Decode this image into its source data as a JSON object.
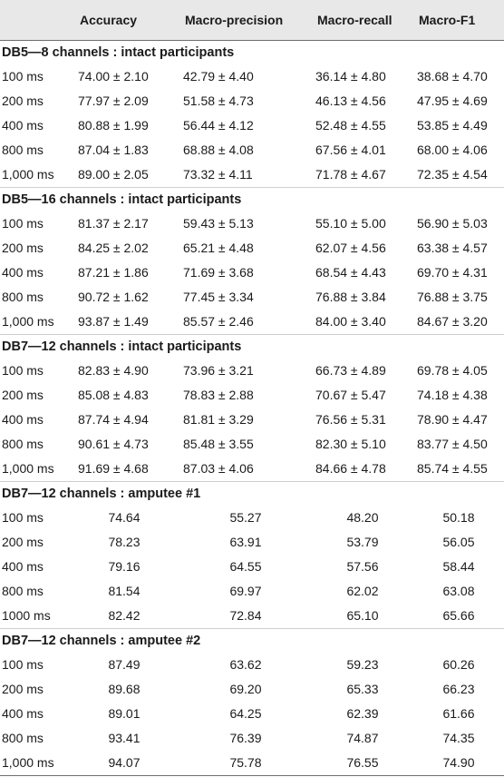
{
  "header": {
    "col0": "",
    "accuracy": "Accuracy",
    "macro_precision": "Macro-precision",
    "macro_recall": "Macro-recall",
    "macro_f1": "Macro-F1"
  },
  "sections": [
    {
      "title": "DB5—8 channels : intact participants",
      "rows": [
        {
          "label": "100 ms",
          "acc": "74.00 ± 2.10",
          "prec": "42.79 ± 4.40",
          "rec": "36.14 ± 4.80",
          "f1": "38.68 ± 4.70"
        },
        {
          "label": "200 ms",
          "acc": "77.97 ± 2.09",
          "prec": "51.58 ± 4.73",
          "rec": "46.13 ± 4.56",
          "f1": "47.95 ± 4.69"
        },
        {
          "label": "400 ms",
          "acc": "80.88 ± 1.99",
          "prec": "56.44 ± 4.12",
          "rec": "52.48 ± 4.55",
          "f1": "53.85 ± 4.49"
        },
        {
          "label": "800 ms",
          "acc": "87.04 ± 1.83",
          "prec": "68.88 ± 4.08",
          "rec": "67.56 ± 4.01",
          "f1": "68.00 ± 4.06"
        },
        {
          "label": "1,000 ms",
          "acc": "89.00 ± 2.05",
          "prec": "73.32 ± 4.11",
          "rec": "71.78 ± 4.67",
          "f1": "72.35 ± 4.54"
        }
      ]
    },
    {
      "title": "DB5—16 channels : intact participants",
      "rows": [
        {
          "label": "100 ms",
          "acc": "81.37 ± 2.17",
          "prec": "59.43 ± 5.13",
          "rec": "55.10 ± 5.00",
          "f1": "56.90 ± 5.03"
        },
        {
          "label": "200 ms",
          "acc": "84.25 ± 2.02",
          "prec": "65.21 ± 4.48",
          "rec": "62.07 ± 4.56",
          "f1": "63.38 ± 4.57"
        },
        {
          "label": "400 ms",
          "acc": "87.21 ± 1.86",
          "prec": "71.69 ± 3.68",
          "rec": "68.54 ± 4.43",
          "f1": "69.70 ± 4.31"
        },
        {
          "label": "800 ms",
          "acc": "90.72 ± 1.62",
          "prec": "77.45 ± 3.34",
          "rec": "76.88 ± 3.84",
          "f1": "76.88 ± 3.75"
        },
        {
          "label": "1,000 ms",
          "acc": "93.87 ± 1.49",
          "prec": "85.57 ± 2.46",
          "rec": "84.00 ± 3.40",
          "f1": "84.67 ± 3.20"
        }
      ]
    },
    {
      "title": "DB7—12 channels : intact participants",
      "rows": [
        {
          "label": "100 ms",
          "acc": "82.83 ± 4.90",
          "prec": "73.96 ± 3.21",
          "rec": "66.73 ± 4.89",
          "f1": "69.78 ± 4.05"
        },
        {
          "label": "200 ms",
          "acc": "85.08 ± 4.83",
          "prec": "78.83 ± 2.88",
          "rec": "70.67 ± 5.47",
          "f1": "74.18 ± 4.38"
        },
        {
          "label": "400 ms",
          "acc": "87.74 ± 4.94",
          "prec": "81.81 ± 3.29",
          "rec": "76.56 ± 5.31",
          "f1": "78.90 ± 4.47"
        },
        {
          "label": "800 ms",
          "acc": "90.61 ± 4.73",
          "prec": "85.48 ± 3.55",
          "rec": "82.30 ± 5.10",
          "f1": "83.77 ± 4.50"
        },
        {
          "label": "1,000 ms",
          "acc": "91.69 ± 4.68",
          "prec": "87.03 ± 4.06",
          "rec": "84.66 ± 4.78",
          "f1": "85.74 ± 4.55"
        }
      ]
    },
    {
      "title": "DB7—12 channels : amputee #1",
      "plain": true,
      "rows": [
        {
          "label": "100 ms",
          "acc": "74.64",
          "prec": "55.27",
          "rec": "48.20",
          "f1": "50.18"
        },
        {
          "label": "200 ms",
          "acc": "78.23",
          "prec": "63.91",
          "rec": "53.79",
          "f1": "56.05"
        },
        {
          "label": "400 ms",
          "acc": "79.16",
          "prec": "64.55",
          "rec": "57.56",
          "f1": "58.44"
        },
        {
          "label": "800 ms",
          "acc": "81.54",
          "prec": "69.97",
          "rec": "62.02",
          "f1": "63.08"
        },
        {
          "label": "1000 ms",
          "acc": "82.42",
          "prec": "72.84",
          "rec": "65.10",
          "f1": "65.66"
        }
      ]
    },
    {
      "title": "DB7—12 channels : amputee #2",
      "plain": true,
      "rows": [
        {
          "label": "100 ms",
          "acc": "87.49",
          "prec": "63.62",
          "rec": "59.23",
          "f1": "60.26"
        },
        {
          "label": "200 ms",
          "acc": "89.68",
          "prec": "69.20",
          "rec": "65.33",
          "f1": "66.23"
        },
        {
          "label": "400 ms",
          "acc": "89.01",
          "prec": "64.25",
          "rec": "62.39",
          "f1": "61.66"
        },
        {
          "label": "800 ms",
          "acc": "93.41",
          "prec": "76.39",
          "rec": "74.87",
          "f1": "74.35"
        },
        {
          "label": "1,000 ms",
          "acc": "94.07",
          "prec": "75.78",
          "rec": "76.55",
          "f1": "74.90"
        }
      ]
    }
  ]
}
